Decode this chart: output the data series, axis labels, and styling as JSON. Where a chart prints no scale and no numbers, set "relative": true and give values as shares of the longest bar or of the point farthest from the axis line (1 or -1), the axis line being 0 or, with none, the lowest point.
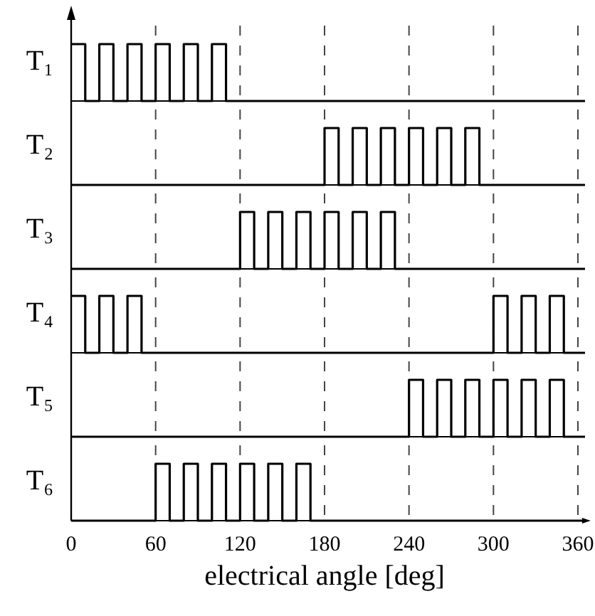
{
  "chart_data": [
    {
      "type": "step",
      "relative": true,
      "ylabel": "T₁",
      "x": [
        0,
        10,
        20,
        30,
        40,
        50,
        60,
        70,
        80,
        90,
        100,
        110,
        365
      ],
      "values": [
        1,
        0,
        1,
        0,
        1,
        0,
        1,
        0,
        1,
        0,
        1,
        0,
        0
      ],
      "color": "#000000",
      "xlim": [
        0,
        365
      ],
      "xticks": [
        0,
        60,
        120,
        180,
        240,
        300,
        360
      ],
      "grid": "x",
      "tick_labels": false
    },
    {
      "type": "step",
      "relative": true,
      "ylabel": "T₂",
      "x": [
        0,
        180,
        190,
        200,
        210,
        220,
        230,
        240,
        250,
        260,
        270,
        280,
        290,
        365
      ],
      "values": [
        0,
        1,
        0,
        1,
        0,
        1,
        0,
        1,
        0,
        1,
        0,
        1,
        0,
        0
      ],
      "color": "#000000",
      "xlim": [
        0,
        365
      ],
      "xticks": [
        0,
        60,
        120,
        180,
        240,
        300,
        360
      ],
      "grid": "x",
      "tick_labels": false
    },
    {
      "type": "step",
      "relative": true,
      "ylabel": "T₃",
      "x": [
        0,
        120,
        130,
        140,
        150,
        160,
        170,
        180,
        190,
        200,
        210,
        220,
        230,
        365
      ],
      "values": [
        0,
        1,
        0,
        1,
        0,
        1,
        0,
        1,
        0,
        1,
        0,
        1,
        0,
        0
      ],
      "color": "#000000",
      "xlim": [
        0,
        365
      ],
      "xticks": [
        0,
        60,
        120,
        180,
        240,
        300,
        360
      ],
      "grid": "x",
      "tick_labels": false
    },
    {
      "type": "step",
      "relative": true,
      "ylabel": "T₄",
      "x": [
        0,
        10,
        20,
        30,
        40,
        50,
        300,
        310,
        320,
        330,
        340,
        350,
        365
      ],
      "values": [
        1,
        0,
        1,
        0,
        1,
        0,
        1,
        0,
        1,
        0,
        1,
        0,
        0
      ],
      "color": "#000000",
      "xlim": [
        0,
        365
      ],
      "xticks": [
        0,
        60,
        120,
        180,
        240,
        300,
        360
      ],
      "grid": "x",
      "tick_labels": false
    },
    {
      "type": "step",
      "relative": true,
      "ylabel": "T₅",
      "x": [
        0,
        240,
        250,
        260,
        270,
        280,
        290,
        300,
        310,
        320,
        330,
        340,
        350,
        365
      ],
      "values": [
        0,
        1,
        0,
        1,
        0,
        1,
        0,
        1,
        0,
        1,
        0,
        1,
        0,
        0
      ],
      "color": "#000000",
      "xlim": [
        0,
        365
      ],
      "xticks": [
        0,
        60,
        120,
        180,
        240,
        300,
        360
      ],
      "grid": "x",
      "tick_labels": false
    },
    {
      "type": "step",
      "relative": true,
      "ylabel": "T₆",
      "xlabel": "electrical angle [deg]",
      "x": [
        0,
        60,
        70,
        80,
        90,
        100,
        110,
        120,
        130,
        140,
        150,
        160,
        170,
        365
      ],
      "values": [
        0,
        1,
        0,
        1,
        0,
        1,
        0,
        1,
        0,
        1,
        0,
        1,
        0,
        0
      ],
      "color": "#000000",
      "xlim": [
        0,
        365
      ],
      "xticks": [
        0,
        60,
        120,
        180,
        240,
        300,
        360
      ],
      "grid": "x",
      "tick_labels": "x"
    }
  ]
}
